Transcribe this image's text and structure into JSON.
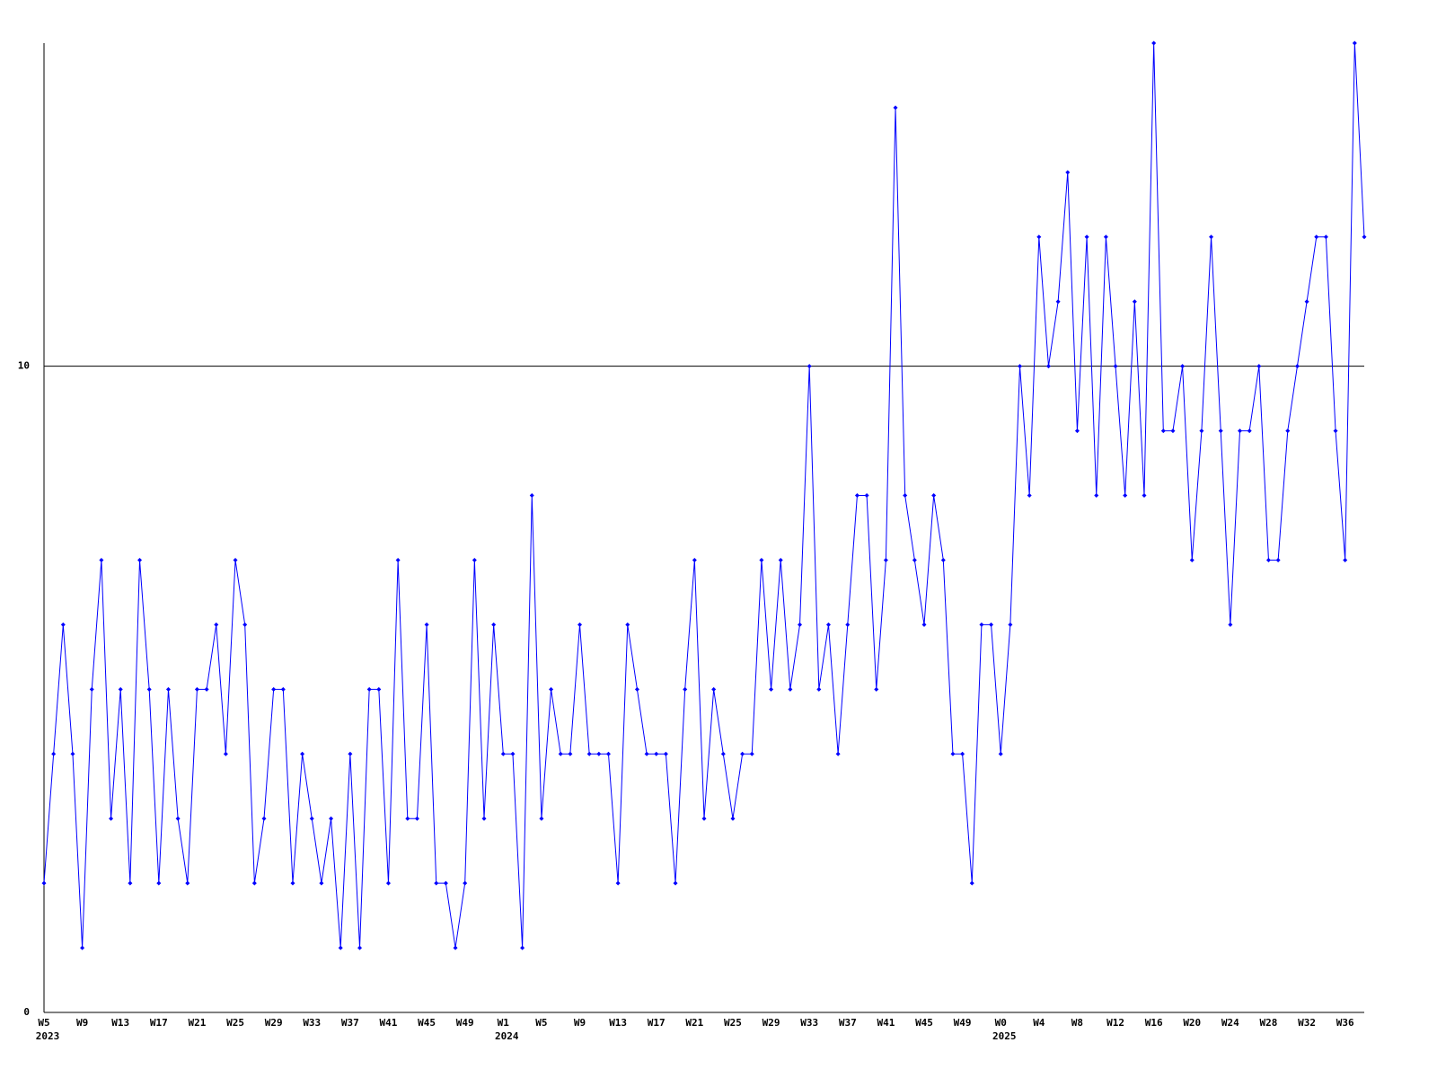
{
  "chart_data": {
    "type": "line",
    "categories": [
      "W5",
      null,
      null,
      null,
      "W9",
      null,
      null,
      null,
      "W13",
      null,
      null,
      null,
      "W17",
      null,
      null,
      null,
      "W21",
      null,
      null,
      null,
      "W25",
      null,
      null,
      null,
      "W29",
      null,
      null,
      null,
      "W33",
      null,
      null,
      null,
      "W37",
      null,
      null,
      null,
      "W41",
      null,
      null,
      null,
      "W45",
      null,
      null,
      null,
      "W49",
      null,
      null,
      null,
      "W1",
      null,
      null,
      null,
      "W5",
      null,
      null,
      null,
      "W9",
      null,
      null,
      null,
      "W13",
      null,
      null,
      null,
      "W17",
      null,
      null,
      null,
      "W21",
      null,
      null,
      null,
      "W25",
      null,
      null,
      null,
      "W29",
      null,
      null,
      null,
      "W33",
      null,
      null,
      null,
      "W37",
      null,
      null,
      null,
      "W41",
      null,
      null,
      null,
      "W45",
      null,
      null,
      null,
      "W49",
      null,
      null,
      null,
      "W0",
      null,
      null,
      null,
      "W4",
      null,
      null,
      null,
      "W8",
      null,
      null,
      null,
      "W12",
      null,
      null,
      null,
      "W16",
      null,
      null,
      null,
      "W20",
      null,
      null,
      null,
      "W24",
      null,
      null,
      null,
      "W28",
      null,
      null,
      null,
      "W32",
      null,
      null,
      null,
      "W36",
      null,
      null
    ],
    "year_labels": [
      {
        "label": "2023",
        "at": 0
      },
      {
        "label": "2024",
        "at": 48
      },
      {
        "label": "2025",
        "at": 100
      }
    ],
    "series": [
      {
        "color": "#0000ff",
        "values": [
          2,
          4,
          6,
          4,
          1,
          5,
          7,
          3,
          5,
          2,
          7,
          5,
          2,
          5,
          3,
          2,
          5,
          5,
          6,
          4,
          7,
          6,
          2,
          3,
          5,
          5,
          2,
          4,
          3,
          2,
          3,
          1,
          4,
          1,
          5,
          5,
          2,
          7,
          3,
          3,
          6,
          2,
          2,
          1,
          2,
          7,
          3,
          6,
          4,
          4,
          1,
          8,
          3,
          5,
          4,
          4,
          6,
          4,
          4,
          4,
          2,
          6,
          5,
          4,
          4,
          4,
          2,
          5,
          7,
          3,
          5,
          4,
          3,
          4,
          4,
          7,
          5,
          7,
          5,
          6,
          10,
          5,
          6,
          4,
          6,
          8,
          8,
          5,
          7,
          14,
          8,
          7,
          6,
          8,
          7,
          4,
          4,
          2,
          6,
          6,
          4,
          6,
          10,
          8,
          12,
          10,
          11,
          13,
          9,
          12,
          8,
          12,
          10,
          8,
          11,
          8,
          15,
          9,
          9,
          10,
          7,
          9,
          12,
          9,
          6,
          9,
          9,
          10,
          7,
          7,
          9,
          10,
          11,
          12,
          12,
          9,
          7,
          15,
          12
        ]
      }
    ],
    "ylim": [
      0,
      15
    ],
    "yticks": [
      0,
      10
    ],
    "grid": true
  }
}
